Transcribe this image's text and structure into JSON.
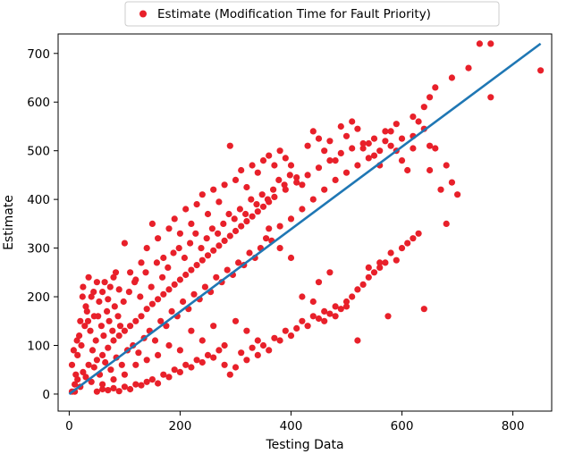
{
  "chart_data": {
    "type": "scatter",
    "xlabel": "Testing Data",
    "ylabel": "Estimate",
    "xlim": [
      -20,
      870
    ],
    "ylim": [
      -35,
      740
    ],
    "xticks": [
      0,
      200,
      400,
      600,
      800
    ],
    "yticks": [
      0,
      100,
      200,
      300,
      400,
      500,
      600,
      700
    ],
    "legend": {
      "placement": "top-center-outside"
    },
    "series": [
      {
        "name": "Estimate (Modification Time for Fault Priority)",
        "kind": "scatter",
        "color": "#e8202a",
        "points": [
          [
            5,
            5
          ],
          [
            10,
            20
          ],
          [
            15,
            30
          ],
          [
            20,
            15
          ],
          [
            25,
            45
          ],
          [
            30,
            35
          ],
          [
            35,
            60
          ],
          [
            40,
            25
          ],
          [
            45,
            55
          ],
          [
            50,
            70
          ],
          [
            55,
            40
          ],
          [
            60,
            80
          ],
          [
            65,
            65
          ],
          [
            70,
            95
          ],
          [
            75,
            50
          ],
          [
            80,
            110
          ],
          [
            85,
            75
          ],
          [
            90,
            120
          ],
          [
            95,
            60
          ],
          [
            100,
            130
          ],
          [
            105,
            90
          ],
          [
            110,
            140
          ],
          [
            115,
            100
          ],
          [
            120,
            150
          ],
          [
            125,
            85
          ],
          [
            130,
            160
          ],
          [
            135,
            115
          ],
          [
            140,
            175
          ],
          [
            145,
            130
          ],
          [
            150,
            185
          ],
          [
            155,
            110
          ],
          [
            160,
            195
          ],
          [
            165,
            150
          ],
          [
            170,
            205
          ],
          [
            175,
            140
          ],
          [
            180,
            215
          ],
          [
            185,
            170
          ],
          [
            190,
            225
          ],
          [
            195,
            160
          ],
          [
            200,
            235
          ],
          [
            205,
            190
          ],
          [
            210,
            245
          ],
          [
            215,
            175
          ],
          [
            220,
            255
          ],
          [
            225,
            205
          ],
          [
            230,
            265
          ],
          [
            235,
            195
          ],
          [
            240,
            275
          ],
          [
            245,
            220
          ],
          [
            250,
            285
          ],
          [
            255,
            210
          ],
          [
            260,
            295
          ],
          [
            265,
            240
          ],
          [
            270,
            305
          ],
          [
            275,
            230
          ],
          [
            280,
            315
          ],
          [
            285,
            255
          ],
          [
            290,
            325
          ],
          [
            295,
            245
          ],
          [
            300,
            335
          ],
          [
            305,
            270
          ],
          [
            310,
            345
          ],
          [
            315,
            265
          ],
          [
            320,
            355
          ],
          [
            325,
            290
          ],
          [
            330,
            365
          ],
          [
            335,
            280
          ],
          [
            340,
            375
          ],
          [
            345,
            300
          ],
          [
            350,
            385
          ],
          [
            355,
            320
          ],
          [
            360,
            395
          ],
          [
            365,
            315
          ],
          [
            370,
            405
          ],
          [
            380,
            345
          ],
          [
            390,
            420
          ],
          [
            400,
            360
          ],
          [
            410,
            435
          ],
          [
            420,
            380
          ],
          [
            430,
            450
          ],
          [
            440,
            400
          ],
          [
            450,
            465
          ],
          [
            460,
            420
          ],
          [
            470,
            480
          ],
          [
            480,
            440
          ],
          [
            490,
            495
          ],
          [
            500,
            455
          ],
          [
            510,
            505
          ],
          [
            520,
            470
          ],
          [
            530,
            515
          ],
          [
            540,
            485
          ],
          [
            550,
            525
          ],
          [
            560,
            500
          ],
          [
            570,
            540
          ],
          [
            580,
            510
          ],
          [
            590,
            555
          ],
          [
            600,
            525
          ],
          [
            620,
            570
          ],
          [
            640,
            590
          ],
          [
            650,
            610
          ],
          [
            660,
            630
          ],
          [
            690,
            650
          ],
          [
            720,
            670
          ],
          [
            740,
            720
          ],
          [
            760,
            610
          ],
          [
            850,
            665
          ],
          [
            760,
            720
          ],
          [
            20,
            150
          ],
          [
            25,
            220
          ],
          [
            30,
            180
          ],
          [
            35,
            240
          ],
          [
            40,
            200
          ],
          [
            45,
            160
          ],
          [
            50,
            230
          ],
          [
            60,
            210
          ],
          [
            70,
            195
          ],
          [
            80,
            240
          ],
          [
            90,
            215
          ],
          [
            100,
            310
          ],
          [
            110,
            250
          ],
          [
            120,
            235
          ],
          [
            130,
            270
          ],
          [
            140,
            300
          ],
          [
            150,
            350
          ],
          [
            160,
            320
          ],
          [
            170,
            280
          ],
          [
            180,
            340
          ],
          [
            190,
            360
          ],
          [
            200,
            330
          ],
          [
            210,
            380
          ],
          [
            220,
            350
          ],
          [
            230,
            390
          ],
          [
            240,
            410
          ],
          [
            250,
            370
          ],
          [
            260,
            420
          ],
          [
            270,
            395
          ],
          [
            280,
            430
          ],
          [
            290,
            510
          ],
          [
            300,
            440
          ],
          [
            310,
            460
          ],
          [
            320,
            425
          ],
          [
            330,
            470
          ],
          [
            340,
            455
          ],
          [
            350,
            480
          ],
          [
            360,
            490
          ],
          [
            370,
            470
          ],
          [
            380,
            500
          ],
          [
            390,
            485
          ],
          [
            400,
            470
          ],
          [
            410,
            445
          ],
          [
            420,
            430
          ],
          [
            430,
            510
          ],
          [
            440,
            540
          ],
          [
            450,
            525
          ],
          [
            460,
            500
          ],
          [
            470,
            520
          ],
          [
            480,
            480
          ],
          [
            490,
            550
          ],
          [
            500,
            530
          ],
          [
            510,
            560
          ],
          [
            520,
            545
          ],
          [
            530,
            505
          ],
          [
            540,
            515
          ],
          [
            550,
            490
          ],
          [
            560,
            470
          ],
          [
            570,
            520
          ],
          [
            580,
            540
          ],
          [
            590,
            500
          ],
          [
            600,
            480
          ],
          [
            610,
            460
          ],
          [
            620,
            530
          ],
          [
            630,
            560
          ],
          [
            640,
            545
          ],
          [
            650,
            510
          ],
          [
            660,
            505
          ],
          [
            670,
            420
          ],
          [
            680,
            470
          ],
          [
            690,
            435
          ],
          [
            700,
            410
          ],
          [
            680,
            350
          ],
          [
            650,
            460
          ],
          [
            620,
            505
          ],
          [
            50,
            5
          ],
          [
            60,
            10
          ],
          [
            70,
            8
          ],
          [
            80,
            12
          ],
          [
            90,
            6
          ],
          [
            100,
            15
          ],
          [
            110,
            10
          ],
          [
            120,
            20
          ],
          [
            130,
            18
          ],
          [
            140,
            25
          ],
          [
            150,
            30
          ],
          [
            160,
            22
          ],
          [
            170,
            40
          ],
          [
            180,
            35
          ],
          [
            190,
            50
          ],
          [
            200,
            45
          ],
          [
            210,
            60
          ],
          [
            220,
            55
          ],
          [
            230,
            70
          ],
          [
            240,
            65
          ],
          [
            250,
            80
          ],
          [
            260,
            75
          ],
          [
            270,
            90
          ],
          [
            280,
            60
          ],
          [
            290,
            40
          ],
          [
            300,
            55
          ],
          [
            310,
            85
          ],
          [
            320,
            70
          ],
          [
            330,
            95
          ],
          [
            340,
            80
          ],
          [
            350,
            100
          ],
          [
            360,
            90
          ],
          [
            370,
            115
          ],
          [
            380,
            110
          ],
          [
            390,
            130
          ],
          [
            400,
            120
          ],
          [
            410,
            135
          ],
          [
            420,
            150
          ],
          [
            430,
            140
          ],
          [
            440,
            160
          ],
          [
            450,
            155
          ],
          [
            460,
            170
          ],
          [
            470,
            165
          ],
          [
            480,
            180
          ],
          [
            490,
            175
          ],
          [
            500,
            190
          ],
          [
            510,
            200
          ],
          [
            520,
            215
          ],
          [
            530,
            225
          ],
          [
            540,
            240
          ],
          [
            550,
            250
          ],
          [
            560,
            260
          ],
          [
            570,
            270
          ],
          [
            580,
            290
          ],
          [
            590,
            275
          ],
          [
            600,
            300
          ],
          [
            610,
            310
          ],
          [
            620,
            320
          ],
          [
            630,
            330
          ],
          [
            520,
            110
          ],
          [
            575,
            160
          ],
          [
            640,
            175
          ],
          [
            540,
            260
          ],
          [
            560,
            270
          ],
          [
            480,
            160
          ],
          [
            500,
            180
          ],
          [
            420,
            200
          ],
          [
            450,
            230
          ],
          [
            470,
            250
          ],
          [
            380,
            300
          ],
          [
            400,
            280
          ],
          [
            360,
            340
          ],
          [
            440,
            190
          ],
          [
            460,
            150
          ],
          [
            300,
            150
          ],
          [
            320,
            130
          ],
          [
            340,
            110
          ],
          [
            280,
            100
          ],
          [
            260,
            140
          ],
          [
            240,
            110
          ],
          [
            220,
            130
          ],
          [
            200,
            90
          ],
          [
            180,
            100
          ],
          [
            160,
            80
          ],
          [
            140,
            70
          ],
          [
            120,
            60
          ],
          [
            100,
            40
          ],
          [
            80,
            30
          ],
          [
            60,
            20
          ],
          [
            10,
            5
          ],
          [
            12,
            40
          ],
          [
            15,
            80
          ],
          [
            18,
            120
          ],
          [
            22,
            100
          ],
          [
            28,
            140
          ],
          [
            32,
            170
          ],
          [
            38,
            130
          ],
          [
            42,
            90
          ],
          [
            48,
            110
          ],
          [
            52,
            160
          ],
          [
            58,
            140
          ],
          [
            62,
            120
          ],
          [
            68,
            170
          ],
          [
            72,
            150
          ],
          [
            78,
            130
          ],
          [
            82,
            180
          ],
          [
            88,
            160
          ],
          [
            92,
            140
          ],
          [
            98,
            190
          ],
          [
            5,
            60
          ],
          [
            8,
            90
          ],
          [
            14,
            110
          ],
          [
            24,
            200
          ],
          [
            34,
            150
          ],
          [
            44,
            210
          ],
          [
            54,
            190
          ],
          [
            64,
            230
          ],
          [
            74,
            220
          ],
          [
            84,
            250
          ],
          [
            108,
            210
          ],
          [
            118,
            230
          ],
          [
            128,
            200
          ],
          [
            138,
            250
          ],
          [
            148,
            220
          ],
          [
            158,
            270
          ],
          [
            168,
            240
          ],
          [
            178,
            260
          ],
          [
            188,
            290
          ],
          [
            198,
            300
          ],
          [
            208,
            280
          ],
          [
            218,
            310
          ],
          [
            228,
            330
          ],
          [
            238,
            300
          ],
          [
            248,
            320
          ],
          [
            258,
            340
          ],
          [
            268,
            330
          ],
          [
            278,
            350
          ],
          [
            288,
            370
          ],
          [
            298,
            360
          ],
          [
            308,
            380
          ],
          [
            318,
            370
          ],
          [
            328,
            400
          ],
          [
            338,
            390
          ],
          [
            348,
            410
          ],
          [
            358,
            400
          ],
          [
            368,
            420
          ],
          [
            378,
            440
          ],
          [
            388,
            430
          ],
          [
            398,
            450
          ]
        ]
      },
      {
        "name": "",
        "kind": "line",
        "color": "#1f77b4",
        "points": [
          [
            0,
            0
          ],
          [
            850,
            720
          ]
        ]
      }
    ]
  }
}
